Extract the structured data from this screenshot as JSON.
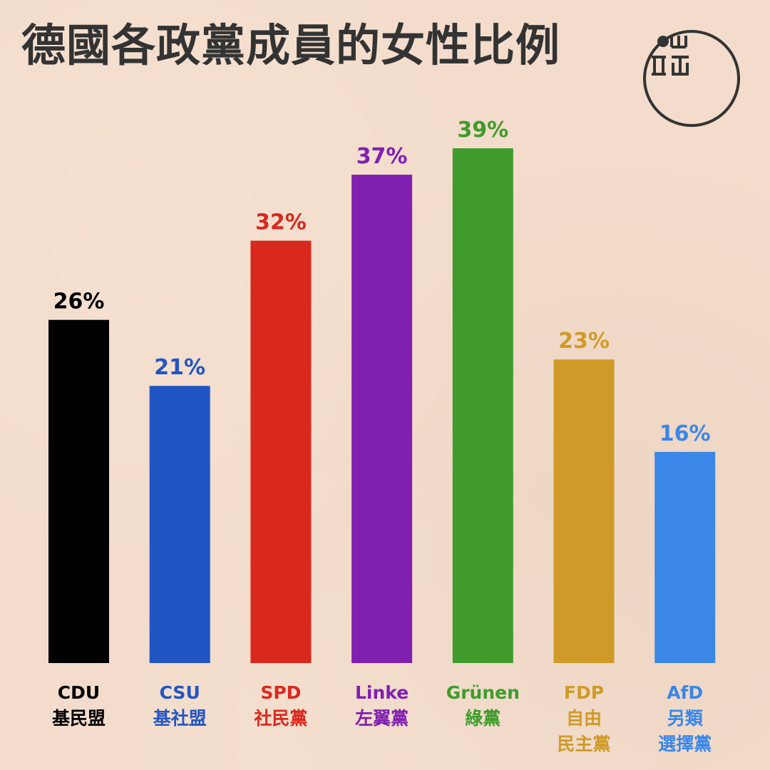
{
  "title": "德國各政黨成員的女性比例",
  "chart_data": {
    "type": "bar",
    "title": "德國各政黨成員的女性比例",
    "xlabel": "",
    "ylabel": "",
    "ylim": [
      0,
      39
    ],
    "grid": false,
    "value_suffix": "%",
    "categories": [
      "CDU",
      "CSU",
      "SPD",
      "Linke",
      "Grünen",
      "FDP",
      "AfD"
    ],
    "category_subtitles": [
      [
        "基民盟"
      ],
      [
        "基社盟"
      ],
      [
        "社民黨"
      ],
      [
        "左翼黨"
      ],
      [
        "綠黨"
      ],
      [
        "自由",
        "民主黨"
      ],
      [
        "另類",
        "選擇黨"
      ]
    ],
    "values": [
      26,
      21,
      32,
      37,
      39,
      23,
      16
    ],
    "colors": [
      "#000000",
      "#2255c4",
      "#d9291e",
      "#8120b0",
      "#3f9b2b",
      "#d09a28",
      "#3a87e8"
    ]
  }
}
